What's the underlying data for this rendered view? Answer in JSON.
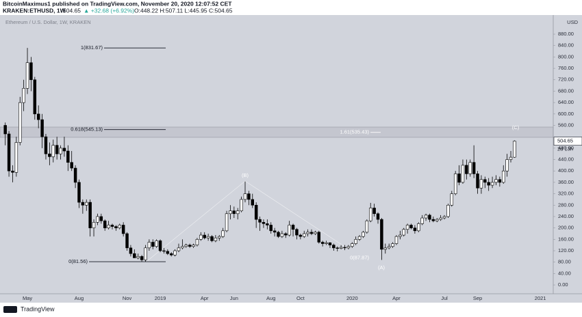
{
  "header": {
    "publisher": "BitcoinMaximus1 published on TradingView.com, November 20, 2020 12:07:52 CET",
    "symbol": "KRAKEN:ETHUSD, 1W",
    "last": "504.65",
    "change": "▲ +32.68 (+6.92%)",
    "ohlc": "O:448.22 H:507.11 L:445.95 C:504.65"
  },
  "footer": {
    "brand": "TradingView"
  },
  "chart_data": {
    "type": "candlestick",
    "title": "Ethereum / U.S. Dollar, 1W, KRAKEN",
    "currency": "USD",
    "countdown": "2d 13h",
    "up_color": "#ffffff",
    "down_color": "#000000",
    "zone_color": "#bfc1c9",
    "categories": [
      null,
      null,
      null,
      null,
      null,
      null,
      "May",
      null,
      null,
      null,
      null,
      null,
      null,
      null,
      null,
      null,
      null,
      null,
      null,
      null,
      "Aug",
      null,
      null,
      null,
      null,
      null,
      null,
      null,
      null,
      null,
      null,
      null,
      null,
      "Nov",
      null,
      null,
      null,
      null,
      null,
      null,
      null,
      null,
      "2019",
      null,
      null,
      null,
      null,
      null,
      null,
      null,
      null,
      null,
      null,
      null,
      "Apr",
      null,
      null,
      null,
      null,
      null,
      null,
      null,
      "Jun",
      null,
      null,
      null,
      null,
      null,
      null,
      null,
      null,
      null,
      "Aug",
      null,
      null,
      null,
      null,
      null,
      null,
      null,
      "Oct",
      null,
      null,
      null,
      null,
      null,
      null,
      null,
      null,
      null,
      null,
      null,
      null,
      null,
      "2020",
      null,
      null,
      null,
      null,
      null,
      null,
      null,
      null,
      null,
      null,
      null,
      "Apr",
      null,
      null,
      null,
      null,
      null,
      null,
      null,
      null,
      null,
      null,
      null,
      null,
      "Jul",
      null,
      null,
      null,
      null,
      null,
      null,
      null,
      null,
      "Sep",
      null,
      null,
      null,
      null,
      null,
      null,
      null,
      null,
      null,
      null,
      null,
      null,
      null,
      null,
      null,
      null,
      "2021",
      null,
      null,
      null
    ],
    "open": [
      560,
      530,
      400,
      395,
      500,
      640,
      690,
      780,
      720,
      600,
      580,
      520,
      460,
      450,
      490,
      460,
      480,
      470,
      430,
      410,
      360,
      290,
      280,
      290,
      200,
      220,
      240,
      225,
      200,
      210,
      205,
      200,
      210,
      180,
      130,
      110,
      95,
      100,
      88,
      130,
      150,
      135,
      155,
      120,
      118,
      110,
      105,
      120,
      130,
      135,
      140,
      135,
      140,
      160,
      175,
      165,
      170,
      155,
      165,
      170,
      190,
      250,
      260,
      250,
      260,
      300,
      320,
      300,
      280,
      230,
      220,
      215,
      210,
      190,
      185,
      170,
      180,
      175,
      210,
      195,
      175,
      170,
      180,
      185,
      180,
      185,
      150,
      145,
      148,
      140,
      130,
      128,
      132,
      130,
      135,
      145,
      160,
      170,
      185,
      225,
      270,
      250,
      230,
      125,
      130,
      135,
      145,
      170,
      175,
      195,
      210,
      200,
      190,
      215,
      235,
      245,
      230,
      225,
      230,
      235,
      240,
      280,
      320,
      390,
      360,
      420,
      390,
      430,
      390,
      340,
      370,
      360,
      350,
      360,
      370,
      360,
      400,
      440,
      448.22,
      null,
      null,
      null,
      null,
      null,
      null,
      null,
      null,
      null,
      null
    ],
    "high": [
      570,
      540,
      420,
      520,
      660,
      720,
      831.67,
      800,
      730,
      630,
      600,
      530,
      500,
      510,
      520,
      490,
      520,
      490,
      470,
      420,
      370,
      300,
      300,
      300,
      230,
      250,
      250,
      230,
      225,
      215,
      210,
      215,
      220,
      185,
      140,
      125,
      110,
      105,
      140,
      160,
      160,
      160,
      160,
      130,
      125,
      115,
      125,
      145,
      160,
      145,
      145,
      145,
      165,
      185,
      185,
      180,
      175,
      175,
      175,
      200,
      260,
      280,
      275,
      270,
      310,
      363,
      330,
      320,
      290,
      240,
      230,
      230,
      220,
      200,
      190,
      190,
      185,
      225,
      215,
      200,
      180,
      190,
      195,
      195,
      190,
      190,
      155,
      155,
      150,
      145,
      135,
      140,
      140,
      140,
      150,
      170,
      175,
      190,
      230,
      288,
      285,
      255,
      235,
      145,
      145,
      150,
      175,
      190,
      200,
      215,
      215,
      210,
      220,
      245,
      250,
      250,
      240,
      235,
      245,
      245,
      285,
      330,
      400,
      420,
      440,
      440,
      440,
      490,
      400,
      385,
      380,
      375,
      380,
      385,
      380,
      420,
      460,
      470,
      507.11,
      null,
      null,
      null,
      null,
      null,
      null,
      null,
      null,
      null,
      null
    ],
    "low": [
      490,
      380,
      360,
      380,
      490,
      610,
      670,
      680,
      580,
      550,
      480,
      440,
      420,
      430,
      440,
      440,
      450,
      400,
      400,
      340,
      270,
      250,
      260,
      170,
      170,
      210,
      215,
      190,
      195,
      195,
      190,
      195,
      170,
      120,
      100,
      95,
      90,
      82,
      81.56,
      120,
      125,
      130,
      115,
      110,
      105,
      100,
      100,
      115,
      125,
      130,
      130,
      130,
      135,
      155,
      160,
      155,
      150,
      150,
      155,
      165,
      185,
      230,
      235,
      230,
      255,
      290,
      280,
      270,
      200,
      190,
      200,
      195,
      180,
      170,
      165,
      165,
      165,
      170,
      170,
      160,
      160,
      165,
      170,
      175,
      175,
      145,
      135,
      140,
      130,
      120,
      118,
      125,
      122,
      125,
      130,
      140,
      155,
      165,
      180,
      220,
      240,
      215,
      87.87,
      110,
      125,
      130,
      140,
      160,
      170,
      180,
      195,
      180,
      185,
      210,
      225,
      220,
      220,
      220,
      225,
      230,
      235,
      275,
      315,
      350,
      355,
      370,
      380,
      375,
      320,
      320,
      340,
      330,
      340,
      350,
      345,
      355,
      380,
      430,
      445.95,
      null,
      null,
      null,
      null,
      null,
      null,
      null,
      null,
      null,
      null
    ],
    "close": [
      530,
      400,
      395,
      500,
      640,
      690,
      780,
      720,
      600,
      580,
      520,
      460,
      450,
      490,
      460,
      480,
      470,
      430,
      410,
      360,
      290,
      280,
      290,
      200,
      220,
      240,
      225,
      200,
      210,
      205,
      200,
      210,
      180,
      130,
      110,
      95,
      100,
      88,
      130,
      150,
      135,
      155,
      120,
      118,
      110,
      105,
      120,
      130,
      135,
      140,
      135,
      140,
      160,
      175,
      165,
      170,
      155,
      165,
      170,
      190,
      250,
      260,
      250,
      260,
      300,
      320,
      300,
      280,
      230,
      220,
      215,
      210,
      190,
      185,
      170,
      180,
      175,
      210,
      195,
      175,
      170,
      180,
      185,
      180,
      185,
      150,
      145,
      148,
      140,
      130,
      128,
      132,
      130,
      135,
      145,
      160,
      170,
      185,
      225,
      270,
      250,
      230,
      125,
      130,
      135,
      145,
      170,
      175,
      195,
      210,
      200,
      190,
      215,
      235,
      245,
      230,
      225,
      230,
      235,
      240,
      280,
      320,
      390,
      360,
      420,
      390,
      430,
      390,
      340,
      370,
      360,
      350,
      360,
      370,
      360,
      400,
      440,
      448.22,
      504.65,
      null,
      null,
      null,
      null,
      null,
      null,
      null,
      null,
      null,
      null
    ],
    "ylim": [
      -55,
      940
    ],
    "yticks": [
      {
        "value": 0,
        "label": "0.00"
      },
      {
        "value": 40,
        "label": "40.00"
      },
      {
        "value": 80,
        "label": "80.00"
      },
      {
        "value": 120,
        "label": "120.00"
      },
      {
        "value": 160,
        "label": "160.00"
      },
      {
        "value": 200,
        "label": "200.00"
      },
      {
        "value": 240,
        "label": "240.00"
      },
      {
        "value": 280,
        "label": "280.00"
      },
      {
        "value": 320,
        "label": "320.00"
      },
      {
        "value": 360,
        "label": "360.00"
      },
      {
        "value": 400,
        "label": "400.00"
      },
      {
        "value": 440,
        "label": "440.00"
      },
      {
        "value": 480,
        "label": "480.00"
      },
      {
        "value": 560,
        "label": "560.00"
      },
      {
        "value": 600,
        "label": "600.00"
      },
      {
        "value": 640,
        "label": "640.00"
      },
      {
        "value": 680,
        "label": "680.00"
      },
      {
        "value": 720,
        "label": "720.00"
      },
      {
        "value": 760,
        "label": "760.00"
      },
      {
        "value": 800,
        "label": "800.00"
      },
      {
        "value": 840,
        "label": "840.00"
      },
      {
        "value": 880,
        "label": "880.00"
      }
    ],
    "zone": [
      518,
      554
    ],
    "levels": [
      {
        "label": "1(831.67)",
        "value": 831.67
      },
      {
        "label": "0.618(545.13)",
        "value": 545.13
      },
      {
        "label": "0(81.56)",
        "value": 81.56
      },
      {
        "label": "0(87.87)",
        "value": 87.87
      },
      {
        "label": "1.61(535.43)",
        "value": 535.43
      }
    ],
    "waves": [
      "(B)",
      "(A)",
      "(C)"
    ]
  }
}
